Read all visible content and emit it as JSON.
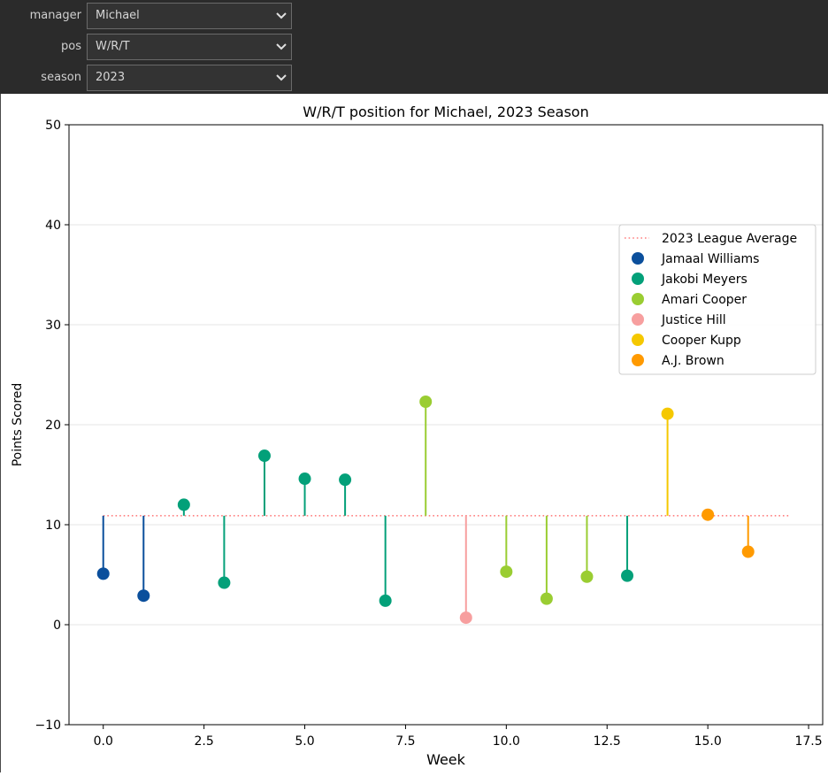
{
  "controls": {
    "manager": {
      "label": "manager",
      "value": "Michael"
    },
    "pos": {
      "label": "pos",
      "value": "W/R/T"
    },
    "season": {
      "label": "season",
      "value": "2023"
    }
  },
  "chart_data": {
    "type": "scatter",
    "title": "W/R/T position for Michael, 2023 Season",
    "xlabel": "Week",
    "ylabel": "Points Scored",
    "xlim": [
      -0.85,
      17.85
    ],
    "ylim": [
      -10,
      50
    ],
    "xticks": [
      0.0,
      2.5,
      5.0,
      7.5,
      10.0,
      12.5,
      15.0,
      17.5
    ],
    "xtick_labels": [
      "0.0",
      "2.5",
      "5.0",
      "7.5",
      "10.0",
      "12.5",
      "15.0",
      "17.5"
    ],
    "yticks": [
      -10,
      0,
      10,
      20,
      30,
      40,
      50
    ],
    "ytick_labels": [
      "−10",
      "0",
      "10",
      "20",
      "30",
      "40",
      "50"
    ],
    "grid": "horizontal",
    "legend_position": "top-right",
    "league_average": {
      "name": "2023 League Average",
      "value": 10.9,
      "x_range": [
        0,
        17
      ],
      "color": "#ff7f7f",
      "style": "dotted"
    },
    "series": [
      {
        "name": "Jamaal Williams",
        "color": "#0b4f9c",
        "x": [
          0,
          1
        ],
        "y": [
          5.1,
          2.9
        ]
      },
      {
        "name": "Jakobi Meyers",
        "color": "#03a079",
        "x": [
          2,
          3,
          4,
          5,
          6,
          7,
          13
        ],
        "y": [
          12.0,
          4.2,
          16.9,
          14.6,
          14.5,
          2.4,
          4.9
        ]
      },
      {
        "name": "Amari Cooper",
        "color": "#9acd32",
        "x": [
          8,
          10,
          11,
          12
        ],
        "y": [
          22.3,
          5.3,
          2.6,
          4.8
        ]
      },
      {
        "name": "Justice Hill",
        "color": "#f79f9f",
        "x": [
          9
        ],
        "y": [
          0.7
        ]
      },
      {
        "name": "Cooper Kupp",
        "color": "#f5c800",
        "x": [
          14
        ],
        "y": [
          21.1
        ]
      },
      {
        "name": "A.J. Brown",
        "color": "#ff9a00",
        "x": [
          15,
          16
        ],
        "y": [
          11.0,
          7.3
        ]
      }
    ]
  }
}
